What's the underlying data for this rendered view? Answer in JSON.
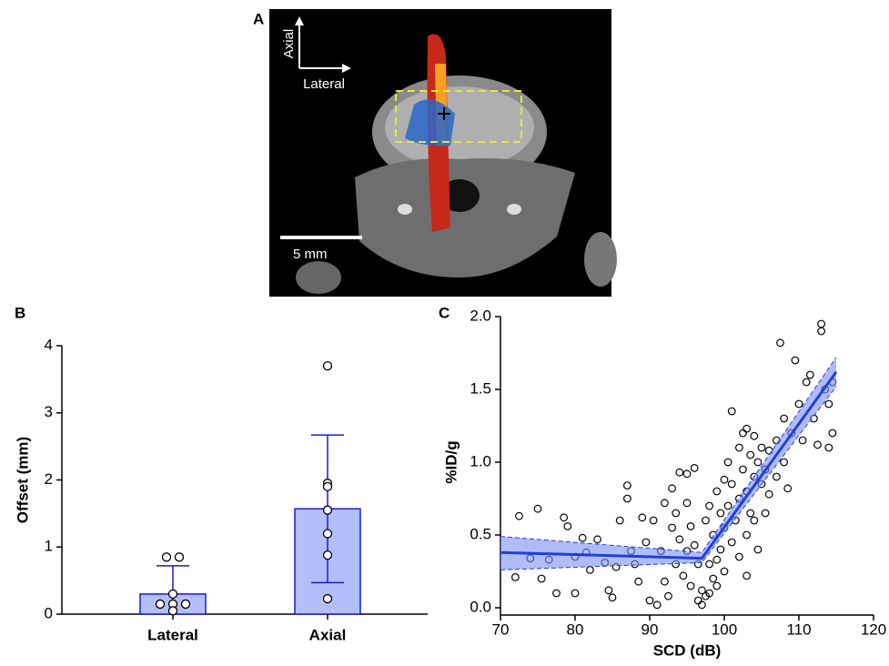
{
  "panel_a": {
    "label": "A",
    "axis_vertical": "Axial",
    "axis_horizontal": "Lateral",
    "scale_bar": "5 mm"
  },
  "chart_data": [
    {
      "type": "bar",
      "panel_label": "B",
      "ylabel": "Offset (mm)",
      "categories": [
        "Lateral",
        "Axial"
      ],
      "values": [
        0.3,
        1.57
      ],
      "errors": [
        0.42,
        1.1
      ],
      "points": [
        [
          0.85,
          0.85,
          0.3,
          0.15,
          0.15,
          0.15,
          0.05
        ],
        [
          3.7,
          1.95,
          1.9,
          1.55,
          1.2,
          0.88,
          0.23
        ]
      ],
      "color": "#b4bef8",
      "edge_color": "#1a1ad8",
      "ylim": [
        0,
        4
      ],
      "yticks": [
        0,
        1,
        2,
        3,
        4
      ]
    },
    {
      "type": "scatter",
      "panel_label": "C",
      "xlabel": "SCD (dB)",
      "ylabel": "%ID/g",
      "xlim": [
        70,
        120
      ],
      "xticks": [
        70,
        80,
        90,
        100,
        110,
        120
      ],
      "ylim": [
        0,
        2
      ],
      "yticks": [
        {
          "value": 0,
          "label": "0.0"
        },
        {
          "value": 0.5,
          "label": "0.5"
        },
        {
          "value": 1,
          "label": "1.0"
        },
        {
          "value": 1.5,
          "label": "1.5"
        },
        {
          "value": 2,
          "label": "2.0"
        }
      ],
      "x": [
        72.5,
        72,
        74,
        75,
        75.5,
        76.5,
        77.5,
        78.5,
        79,
        80,
        80,
        81,
        81.5,
        82,
        83,
        84,
        84.5,
        85,
        85.5,
        86,
        87,
        87,
        87.5,
        88,
        88.5,
        89,
        89.5,
        90,
        90.5,
        91,
        91.5,
        92,
        92,
        92.5,
        93,
        93,
        93.5,
        93.5,
        94,
        94,
        94.5,
        95,
        95,
        95,
        95.5,
        95.5,
        96,
        96,
        96.5,
        96.5,
        97,
        97,
        97.5,
        97.5,
        98,
        98,
        98,
        98.5,
        98.5,
        99,
        99,
        99,
        99.5,
        99.5,
        100,
        100,
        100,
        100.5,
        100.5,
        101,
        101,
        101,
        101.5,
        102,
        102,
        102,
        102.5,
        102.5,
        103,
        103,
        103,
        103,
        103.5,
        103.5,
        104,
        104,
        104,
        104.5,
        104.5,
        105,
        105,
        105.5,
        105.5,
        106,
        106,
        107,
        107,
        107.5,
        108,
        108,
        108.5,
        109,
        109.5,
        110,
        110.5,
        111,
        111.5,
        112,
        112.5,
        113,
        113,
        113.5,
        114,
        114,
        114.5,
        114.5
      ],
      "values": [
        0.63,
        0.21,
        0.34,
        0.68,
        0.2,
        0.33,
        0.1,
        0.62,
        0.56,
        0.35,
        0.1,
        0.48,
        0.38,
        0.26,
        0.47,
        0.31,
        0.12,
        0.07,
        0.28,
        0.6,
        0.84,
        0.75,
        0.39,
        0.3,
        0.18,
        0.62,
        0.45,
        0.05,
        0.6,
        0.02,
        0.39,
        0.72,
        0.18,
        0.08,
        0.82,
        0.55,
        0.65,
        0.3,
        0.93,
        0.47,
        0.22,
        0.92,
        0.72,
        0.39,
        0.15,
        0.56,
        0.96,
        0.43,
        0.05,
        0.3,
        0.02,
        0.12,
        0.6,
        0.08,
        0.7,
        0.3,
        0.1,
        0.5,
        0.2,
        0.8,
        0.33,
        0.15,
        0.65,
        0.4,
        0.88,
        0.55,
        0.25,
        1.0,
        0.7,
        1.35,
        0.85,
        0.45,
        0.6,
        1.1,
        0.75,
        0.35,
        1.2,
        0.95,
        1.23,
        0.8,
        0.5,
        0.22,
        1.05,
        0.65,
        1.18,
        0.9,
        0.6,
        1.0,
        0.4,
        1.1,
        0.85,
        0.95,
        0.65,
        1.08,
        0.78,
        1.15,
        0.9,
        1.82,
        1.3,
        1.0,
        0.82,
        1.2,
        1.7,
        1.4,
        1.15,
        1.55,
        1.6,
        1.3,
        1.12,
        1.95,
        1.9,
        1.5,
        1.1,
        1.4,
        1.55,
        1.2
      ],
      "fit": {
        "x": [
          70,
          97,
          115
        ],
        "values": [
          0.38,
          0.34,
          1.62
        ],
        "lower": [
          0.26,
          0.31,
          1.52
        ],
        "upper": [
          0.49,
          0.38,
          1.72
        ],
        "color": "#1f3fe0",
        "band_color": "#7b8ff0"
      }
    }
  ]
}
